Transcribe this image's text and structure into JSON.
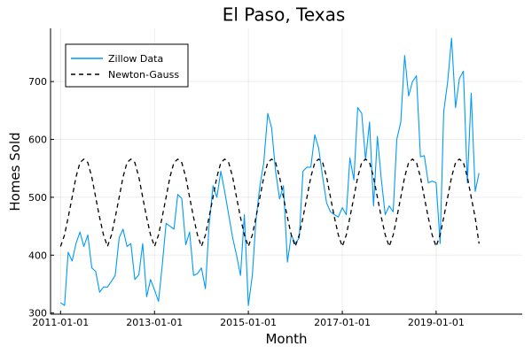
{
  "chart_data": {
    "type": "line",
    "title": "El Paso, Texas",
    "xlabel": "Month",
    "ylabel": "Homes Sold",
    "x_ticks": [
      "2011-01-01",
      "2013-01-01",
      "2015-01-01",
      "2017-01-01",
      "2019-01-01"
    ],
    "y_ticks": [
      300,
      400,
      500,
      600,
      700
    ],
    "xlim": [
      "2010-10-15",
      "2020-11-01"
    ],
    "ylim": [
      298,
      792
    ],
    "grid": true,
    "legend_position": "top-left",
    "series": [
      {
        "name": "Zillow Data",
        "color": "#009AFA",
        "style": "solid",
        "x": [
          "2011-01",
          "2011-02",
          "2011-03",
          "2011-04",
          "2011-05",
          "2011-06",
          "2011-07",
          "2011-08",
          "2011-09",
          "2011-10",
          "2011-11",
          "2011-12",
          "2012-01",
          "2012-02",
          "2012-03",
          "2012-04",
          "2012-05",
          "2012-06",
          "2012-07",
          "2012-08",
          "2012-09",
          "2012-10",
          "2012-11",
          "2012-12",
          "2013-01",
          "2013-02",
          "2013-03",
          "2013-04",
          "2013-05",
          "2013-06",
          "2013-07",
          "2013-08",
          "2013-09",
          "2013-10",
          "2013-11",
          "2013-12",
          "2014-01",
          "2014-02",
          "2014-03",
          "2014-04",
          "2014-05",
          "2014-06",
          "2014-07",
          "2014-08",
          "2014-09",
          "2014-10",
          "2014-11",
          "2014-12",
          "2015-01",
          "2015-02",
          "2015-03",
          "2015-04",
          "2015-05",
          "2015-06",
          "2015-07",
          "2015-08",
          "2015-09",
          "2015-10",
          "2015-11",
          "2015-12",
          "2016-01",
          "2016-02",
          "2016-03",
          "2016-04",
          "2016-05",
          "2016-06",
          "2016-07",
          "2016-08",
          "2016-09",
          "2016-10",
          "2016-11",
          "2016-12",
          "2017-01",
          "2017-02",
          "2017-03",
          "2017-04",
          "2017-05",
          "2017-06",
          "2017-07",
          "2017-08",
          "2017-09",
          "2017-10",
          "2017-11",
          "2017-12",
          "2018-01",
          "2018-02",
          "2018-03",
          "2018-04",
          "2018-05",
          "2018-06",
          "2018-07",
          "2018-08",
          "2018-09",
          "2018-10",
          "2018-11",
          "2018-12",
          "2019-01",
          "2019-02",
          "2019-03",
          "2019-04",
          "2019-05",
          "2019-06",
          "2019-07",
          "2019-08",
          "2019-09",
          "2019-10",
          "2019-11",
          "2019-12"
        ],
        "values": [
          318,
          313,
          405,
          390,
          420,
          440,
          415,
          435,
          378,
          372,
          336,
          345,
          345,
          355,
          365,
          430,
          445,
          415,
          420,
          358,
          366,
          420,
          328,
          358,
          340,
          320,
          380,
          455,
          450,
          445,
          505,
          498,
          418,
          440,
          365,
          368,
          378,
          342,
          450,
          520,
          500,
          545,
          510,
          470,
          430,
          400,
          365,
          470,
          313,
          365,
          460,
          520,
          560,
          645,
          620,
          545,
          497,
          520,
          388,
          435,
          420,
          430,
          545,
          552,
          552,
          608,
          585,
          535,
          490,
          475,
          470,
          466,
          482,
          470,
          568,
          530,
          655,
          645,
          565,
          630,
          485,
          605,
          530,
          470,
          485,
          475,
          600,
          630,
          745,
          675,
          700,
          710,
          570,
          572,
          525,
          528,
          525,
          420,
          648,
          700,
          775,
          655,
          705,
          718,
          525,
          680,
          510,
          542
        ]
      },
      {
        "name": "Newton-Gauss",
        "color": "#000000",
        "style": "dashed",
        "x": [
          "2011-01",
          "2011-02",
          "2011-03",
          "2011-04",
          "2011-05",
          "2011-06",
          "2011-07",
          "2011-08",
          "2011-09",
          "2011-10",
          "2011-11",
          "2011-12",
          "2012-01",
          "2012-02",
          "2012-03",
          "2012-04",
          "2012-05",
          "2012-06",
          "2012-07",
          "2012-08",
          "2012-09",
          "2012-10",
          "2012-11",
          "2012-12",
          "2013-01",
          "2013-02",
          "2013-03",
          "2013-04",
          "2013-05",
          "2013-06",
          "2013-07",
          "2013-08",
          "2013-09",
          "2013-10",
          "2013-11",
          "2013-12",
          "2014-01",
          "2014-02",
          "2014-03",
          "2014-04",
          "2014-05",
          "2014-06",
          "2014-07",
          "2014-08",
          "2014-09",
          "2014-10",
          "2014-11",
          "2014-12",
          "2015-01",
          "2015-02",
          "2015-03",
          "2015-04",
          "2015-05",
          "2015-06",
          "2015-07",
          "2015-08",
          "2015-09",
          "2015-10",
          "2015-11",
          "2015-12",
          "2016-01",
          "2016-02",
          "2016-03",
          "2016-04",
          "2016-05",
          "2016-06",
          "2016-07",
          "2016-08",
          "2016-09",
          "2016-10",
          "2016-11",
          "2016-12",
          "2017-01",
          "2017-02",
          "2017-03",
          "2017-04",
          "2017-05",
          "2017-06",
          "2017-07",
          "2017-08",
          "2017-09",
          "2017-10",
          "2017-11",
          "2017-12",
          "2018-01",
          "2018-02",
          "2018-03",
          "2018-04",
          "2018-05",
          "2018-06",
          "2018-07",
          "2018-08",
          "2018-09",
          "2018-10",
          "2018-11",
          "2018-12",
          "2019-01",
          "2019-02",
          "2019-03",
          "2019-04",
          "2019-05",
          "2019-06",
          "2019-07",
          "2019-08",
          "2019-09",
          "2019-10",
          "2019-11",
          "2019-12"
        ],
        "values": [
          415,
          435,
          465,
          500,
          535,
          560,
          566,
          560,
          535,
          500,
          465,
          435,
          415,
          435,
          465,
          500,
          535,
          560,
          566,
          560,
          535,
          500,
          465,
          435,
          415,
          435,
          465,
          500,
          535,
          560,
          566,
          560,
          535,
          500,
          465,
          435,
          415,
          435,
          465,
          500,
          535,
          560,
          566,
          560,
          535,
          500,
          465,
          435,
          415,
          435,
          465,
          500,
          535,
          560,
          566,
          560,
          535,
          500,
          465,
          435,
          415,
          435,
          465,
          500,
          535,
          560,
          566,
          560,
          535,
          500,
          465,
          435,
          415,
          435,
          465,
          500,
          535,
          560,
          566,
          560,
          535,
          500,
          465,
          435,
          415,
          435,
          465,
          500,
          535,
          560,
          566,
          560,
          535,
          500,
          465,
          435,
          415,
          435,
          465,
          500,
          535,
          560,
          566,
          560,
          535,
          500,
          465,
          420
        ]
      }
    ]
  }
}
